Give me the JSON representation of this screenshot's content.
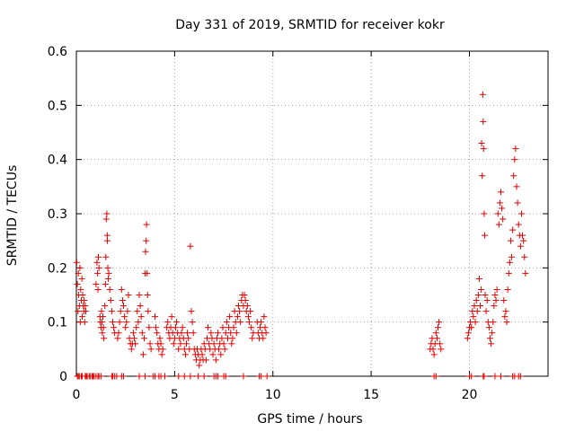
{
  "chart_data": {
    "type": "scatter",
    "title": "Day 331 of 2019, SRMTID for receiver kokr",
    "xlabel": "GPS time / hours",
    "ylabel": "SRMTID / TECUs",
    "xlim": [
      0,
      24
    ],
    "ylim": [
      0,
      0.6
    ],
    "xticks": [
      0,
      5,
      10,
      15,
      20
    ],
    "yticks": [
      0,
      0.1,
      0.2,
      0.3,
      0.4,
      0.5,
      0.6
    ],
    "xtick_labels": [
      "0",
      "5",
      "10",
      "15",
      "20"
    ],
    "ytick_labels": [
      "0",
      "0.1",
      "0.2",
      "0.3",
      "0.4",
      "0.5",
      "0.6"
    ],
    "grid": true,
    "marker": "+",
    "color": "#e00000",
    "series": [
      {
        "name": "SRMTID",
        "points": [
          [
            0.02,
            0.21
          ],
          [
            0.05,
            0.17
          ],
          [
            0.08,
            0.12
          ],
          [
            0.1,
            0.19
          ],
          [
            0.12,
            0.15
          ],
          [
            0.15,
            0.13
          ],
          [
            0.18,
            0.2
          ],
          [
            0.2,
            0.1
          ],
          [
            0.22,
            0.16
          ],
          [
            0.25,
            0.14
          ],
          [
            0.28,
            0.18
          ],
          [
            0.3,
            0.11
          ],
          [
            0.32,
            0.15
          ],
          [
            0.35,
            0.13
          ],
          [
            0.38,
            0.12
          ],
          [
            0.4,
            0.14
          ],
          [
            0.42,
            0.1
          ],
          [
            0.45,
            0.13
          ],
          [
            0.48,
            0.12
          ],
          [
            1.0,
            0.17
          ],
          [
            1.05,
            0.21
          ],
          [
            1.08,
            0.19
          ],
          [
            1.1,
            0.16
          ],
          [
            1.12,
            0.22
          ],
          [
            1.15,
            0.2
          ],
          [
            1.2,
            0.11
          ],
          [
            1.22,
            0.1
          ],
          [
            1.25,
            0.09
          ],
          [
            1.28,
            0.12
          ],
          [
            1.3,
            0.1
          ],
          [
            1.32,
            0.08
          ],
          [
            1.35,
            0.11
          ],
          [
            1.38,
            0.09
          ],
          [
            1.4,
            0.07
          ],
          [
            1.45,
            0.13
          ],
          [
            1.48,
            0.17
          ],
          [
            1.5,
            0.22
          ],
          [
            1.52,
            0.29
          ],
          [
            1.55,
            0.3
          ],
          [
            1.57,
            0.26
          ],
          [
            1.58,
            0.25
          ],
          [
            1.6,
            0.2
          ],
          [
            1.62,
            0.18
          ],
          [
            1.65,
            0.19
          ],
          [
            1.7,
            0.16
          ],
          [
            1.75,
            0.14
          ],
          [
            1.8,
            0.12
          ],
          [
            1.85,
            0.1
          ],
          [
            1.9,
            0.09
          ],
          [
            1.95,
            0.08
          ],
          [
            2.1,
            0.07
          ],
          [
            2.15,
            0.08
          ],
          [
            2.2,
            0.1
          ],
          [
            2.25,
            0.12
          ],
          [
            2.3,
            0.16
          ],
          [
            2.35,
            0.14
          ],
          [
            2.4,
            0.13
          ],
          [
            2.45,
            0.11
          ],
          [
            2.5,
            0.09
          ],
          [
            2.55,
            0.1
          ],
          [
            2.6,
            0.12
          ],
          [
            2.65,
            0.15
          ],
          [
            2.7,
            0.07
          ],
          [
            2.75,
            0.06
          ],
          [
            2.8,
            0.05
          ],
          [
            2.85,
            0.06
          ],
          [
            2.9,
            0.08
          ],
          [
            2.95,
            0.07
          ],
          [
            3.0,
            0.06
          ],
          [
            3.05,
            0.09
          ],
          [
            3.1,
            0.12
          ],
          [
            3.15,
            0.1
          ],
          [
            3.2,
            0.15
          ],
          [
            3.25,
            0.13
          ],
          [
            3.3,
            0.11
          ],
          [
            3.35,
            0.08
          ],
          [
            3.4,
            0.04
          ],
          [
            3.45,
            0.07
          ],
          [
            3.5,
            0.19
          ],
          [
            3.52,
            0.23
          ],
          [
            3.55,
            0.25
          ],
          [
            3.57,
            0.28
          ],
          [
            3.6,
            0.19
          ],
          [
            3.62,
            0.15
          ],
          [
            3.65,
            0.12
          ],
          [
            3.7,
            0.09
          ],
          [
            3.75,
            0.06
          ],
          [
            3.8,
            0.05
          ],
          [
            4.0,
            0.11
          ],
          [
            4.05,
            0.09
          ],
          [
            4.1,
            0.08
          ],
          [
            4.15,
            0.06
          ],
          [
            4.2,
            0.05
          ],
          [
            4.25,
            0.07
          ],
          [
            4.3,
            0.06
          ],
          [
            4.35,
            0.04
          ],
          [
            4.4,
            0.05
          ],
          [
            4.6,
            0.09
          ],
          [
            4.65,
            0.1
          ],
          [
            4.7,
            0.08
          ],
          [
            4.75,
            0.07
          ],
          [
            4.8,
            0.09
          ],
          [
            4.85,
            0.11
          ],
          [
            4.9,
            0.08
          ],
          [
            4.95,
            0.06
          ],
          [
            5.0,
            0.07
          ],
          [
            5.05,
            0.09
          ],
          [
            5.1,
            0.1
          ],
          [
            5.15,
            0.08
          ],
          [
            5.2,
            0.05
          ],
          [
            5.25,
            0.07
          ],
          [
            5.3,
            0.06
          ],
          [
            5.35,
            0.08
          ],
          [
            5.4,
            0.09
          ],
          [
            5.45,
            0.07
          ],
          [
            5.5,
            0.05
          ],
          [
            5.55,
            0.04
          ],
          [
            5.6,
            0.06
          ],
          [
            5.65,
            0.08
          ],
          [
            5.7,
            0.07
          ],
          [
            5.75,
            0.05
          ],
          [
            5.8,
            0.24
          ],
          [
            5.85,
            0.12
          ],
          [
            5.9,
            0.1
          ],
          [
            5.95,
            0.08
          ],
          [
            6.0,
            0.05
          ],
          [
            6.05,
            0.04
          ],
          [
            6.1,
            0.03
          ],
          [
            6.15,
            0.05
          ],
          [
            6.2,
            0.04
          ],
          [
            6.25,
            0.02
          ],
          [
            6.3,
            0.03
          ],
          [
            6.35,
            0.05
          ],
          [
            6.4,
            0.04
          ],
          [
            6.45,
            0.03
          ],
          [
            6.5,
            0.06
          ],
          [
            6.55,
            0.05
          ],
          [
            6.6,
            0.03
          ],
          [
            6.65,
            0.07
          ],
          [
            6.7,
            0.09
          ],
          [
            6.75,
            0.06
          ],
          [
            6.8,
            0.05
          ],
          [
            6.85,
            0.08
          ],
          [
            6.9,
            0.07
          ],
          [
            6.95,
            0.04
          ],
          [
            7.0,
            0.06
          ],
          [
            7.05,
            0.05
          ],
          [
            7.1,
            0.03
          ],
          [
            7.15,
            0.07
          ],
          [
            7.2,
            0.08
          ],
          [
            7.25,
            0.05
          ],
          [
            7.3,
            0.06
          ],
          [
            7.35,
            0.04
          ],
          [
            7.4,
            0.07
          ],
          [
            7.45,
            0.09
          ],
          [
            7.5,
            0.06
          ],
          [
            7.55,
            0.05
          ],
          [
            7.6,
            0.08
          ],
          [
            7.65,
            0.1
          ],
          [
            7.7,
            0.07
          ],
          [
            7.75,
            0.09
          ],
          [
            7.8,
            0.11
          ],
          [
            7.85,
            0.08
          ],
          [
            7.9,
            0.06
          ],
          [
            7.95,
            0.07
          ],
          [
            8.0,
            0.09
          ],
          [
            8.05,
            0.12
          ],
          [
            8.1,
            0.1
          ],
          [
            8.15,
            0.08
          ],
          [
            8.2,
            0.11
          ],
          [
            8.25,
            0.13
          ],
          [
            8.3,
            0.12
          ],
          [
            8.35,
            0.1
          ],
          [
            8.4,
            0.14
          ],
          [
            8.45,
            0.15
          ],
          [
            8.5,
            0.13
          ],
          [
            8.55,
            0.15
          ],
          [
            8.6,
            0.14
          ],
          [
            8.65,
            0.12
          ],
          [
            8.7,
            0.13
          ],
          [
            8.75,
            0.11
          ],
          [
            8.8,
            0.1
          ],
          [
            8.85,
            0.12
          ],
          [
            8.9,
            0.09
          ],
          [
            8.95,
            0.07
          ],
          [
            9.0,
            0.08
          ],
          [
            9.2,
            0.1
          ],
          [
            9.25,
            0.08
          ],
          [
            9.3,
            0.07
          ],
          [
            9.35,
            0.09
          ],
          [
            9.4,
            0.1
          ],
          [
            9.45,
            0.08
          ],
          [
            9.5,
            0.07
          ],
          [
            9.55,
            0.11
          ],
          [
            9.6,
            0.09
          ],
          [
            9.65,
            0.08
          ],
          [
            18.0,
            0.05
          ],
          [
            18.05,
            0.06
          ],
          [
            18.1,
            0.07
          ],
          [
            18.15,
            0.05
          ],
          [
            18.2,
            0.04
          ],
          [
            18.25,
            0.06
          ],
          [
            18.3,
            0.08
          ],
          [
            18.35,
            0.07
          ],
          [
            18.4,
            0.09
          ],
          [
            18.45,
            0.1
          ],
          [
            18.5,
            0.06
          ],
          [
            18.55,
            0.05
          ],
          [
            19.9,
            0.07
          ],
          [
            19.95,
            0.08
          ],
          [
            20.0,
            0.09
          ],
          [
            20.05,
            0.1
          ],
          [
            20.1,
            0.09
          ],
          [
            20.15,
            0.12
          ],
          [
            20.2,
            0.11
          ],
          [
            20.25,
            0.13
          ],
          [
            20.3,
            0.1
          ],
          [
            20.35,
            0.14
          ],
          [
            20.4,
            0.12
          ],
          [
            20.45,
            0.15
          ],
          [
            20.5,
            0.18
          ],
          [
            20.55,
            0.13
          ],
          [
            20.6,
            0.16
          ],
          [
            20.62,
            0.43
          ],
          [
            20.65,
            0.37
          ],
          [
            20.68,
            0.52
          ],
          [
            20.7,
            0.47
          ],
          [
            20.72,
            0.42
          ],
          [
            20.75,
            0.3
          ],
          [
            20.78,
            0.26
          ],
          [
            20.8,
            0.15
          ],
          [
            20.85,
            0.12
          ],
          [
            20.9,
            0.14
          ],
          [
            20.95,
            0.1
          ],
          [
            21.0,
            0.09
          ],
          [
            21.05,
            0.07
          ],
          [
            21.1,
            0.06
          ],
          [
            21.15,
            0.08
          ],
          [
            21.2,
            0.1
          ],
          [
            21.25,
            0.13
          ],
          [
            21.3,
            0.15
          ],
          [
            21.35,
            0.14
          ],
          [
            21.4,
            0.16
          ],
          [
            21.45,
            0.3
          ],
          [
            21.5,
            0.28
          ],
          [
            21.55,
            0.32
          ],
          [
            21.6,
            0.34
          ],
          [
            21.65,
            0.31
          ],
          [
            21.7,
            0.29
          ],
          [
            21.75,
            0.14
          ],
          [
            21.8,
            0.11
          ],
          [
            21.85,
            0.12
          ],
          [
            21.9,
            0.1
          ],
          [
            21.95,
            0.16
          ],
          [
            22.0,
            0.19
          ],
          [
            22.05,
            0.21
          ],
          [
            22.1,
            0.25
          ],
          [
            22.15,
            0.22
          ],
          [
            22.2,
            0.27
          ],
          [
            22.25,
            0.37
          ],
          [
            22.3,
            0.4
          ],
          [
            22.35,
            0.42
          ],
          [
            22.4,
            0.35
          ],
          [
            22.45,
            0.32
          ],
          [
            22.5,
            0.28
          ],
          [
            22.55,
            0.26
          ],
          [
            22.6,
            0.24
          ],
          [
            22.65,
            0.3
          ],
          [
            22.7,
            0.26
          ],
          [
            22.75,
            0.25
          ],
          [
            22.8,
            0.22
          ],
          [
            22.85,
            0.19
          ]
        ]
      }
    ],
    "zero_markers_x": [
      0.05,
      0.1,
      0.15,
      0.25,
      0.3,
      0.45,
      0.5,
      0.55,
      0.65,
      0.7,
      0.8,
      0.85,
      0.9,
      1.0,
      1.1,
      1.15,
      1.25,
      1.8,
      1.85,
      1.95,
      2.05,
      2.3,
      2.4,
      3.2,
      3.5,
      3.9,
      4.0,
      4.2,
      4.3,
      4.5,
      5.2,
      5.5,
      5.8,
      6.2,
      6.5,
      7.0,
      7.1,
      7.2,
      7.5,
      7.6,
      8.5,
      9.3,
      9.4,
      9.7,
      18.2,
      18.3,
      20.0,
      20.1,
      20.7,
      20.75,
      21.3,
      21.6,
      22.2,
      22.3,
      22.5,
      22.6
    ]
  }
}
